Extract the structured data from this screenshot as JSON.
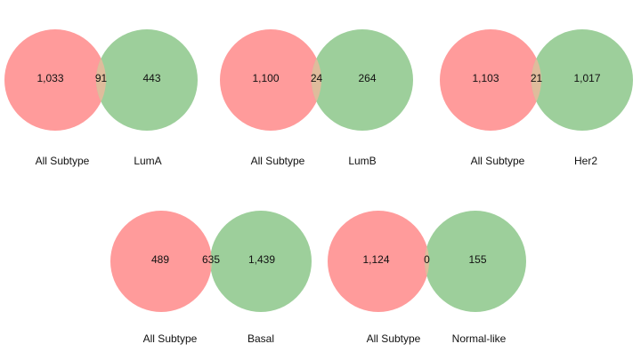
{
  "colors": {
    "left_set": "#ff9b9b",
    "right_set": "#9dcf9b",
    "overlap": "#dfbc9c"
  },
  "venns": [
    {
      "left_label": "All Subtype",
      "right_label": "LumA",
      "left_only": "1,033",
      "overlap": "91",
      "right_only": "443"
    },
    {
      "left_label": "All Subtype",
      "right_label": "LumB",
      "left_only": "1,100",
      "overlap": "24",
      "right_only": "264"
    },
    {
      "left_label": "All Subtype",
      "right_label": "Her2",
      "left_only": "1,103",
      "overlap": "21",
      "right_only": "1,017"
    },
    {
      "left_label": "All Subtype",
      "right_label": "Basal",
      "left_only": "489",
      "overlap": "635",
      "right_only": "1,439"
    },
    {
      "left_label": "All Subtype",
      "right_label": "Normal-like",
      "left_only": "1,124",
      "overlap": "0",
      "right_only": "155"
    }
  ]
}
